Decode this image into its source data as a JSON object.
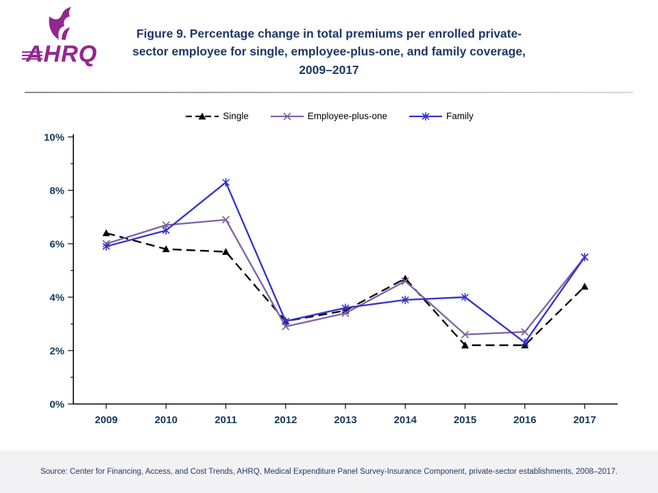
{
  "header": {
    "logo_text": "AHRQ",
    "title": "Figure 9. Percentage change in total premiums per enrolled private-\nsector employee for single, employee-plus-one, and family coverage,\n2009–2017"
  },
  "chart_data": {
    "type": "line",
    "title": "Figure 9. Percentage change in total premiums per enrolled private-sector employee for single, employee-plus-one, and family coverage, 2009–2017",
    "x": [
      "2009",
      "2010",
      "2011",
      "2012",
      "2013",
      "2014",
      "2015",
      "2016",
      "2017"
    ],
    "series": [
      {
        "name": "Single",
        "color": "#000000",
        "dash": "13,7",
        "marker": "triangle",
        "values": [
          6.4,
          5.8,
          5.7,
          3.1,
          3.5,
          4.7,
          2.2,
          2.2,
          4.4
        ]
      },
      {
        "name": "Employee-plus-one",
        "color": "#8064A2",
        "dash": "",
        "marker": "x",
        "values": [
          6.0,
          6.7,
          6.9,
          2.9,
          3.4,
          4.6,
          2.6,
          2.7,
          5.5
        ]
      },
      {
        "name": "Family",
        "color": "#3333CC",
        "dash": "",
        "marker": "asterisk",
        "values": [
          5.9,
          6.5,
          8.3,
          3.1,
          3.6,
          3.9,
          4.0,
          2.3,
          5.5
        ]
      }
    ],
    "ylim": [
      0,
      10
    ],
    "ytick_step": 2,
    "ytick_minor_step": 1,
    "yticklabels": [
      "0%",
      "2%",
      "4%",
      "6%",
      "8%",
      "10%"
    ],
    "xlabel": "",
    "ylabel": "",
    "grid": false,
    "legend_position": "top",
    "axis_label_color": "#17375D"
  },
  "footer": {
    "source": "Source: Center for Financing, Access, and Cost Trends, AHRQ, Medical Expenditure Panel Survey-Insurance Component, private-sector establishments, 2008–2017."
  }
}
